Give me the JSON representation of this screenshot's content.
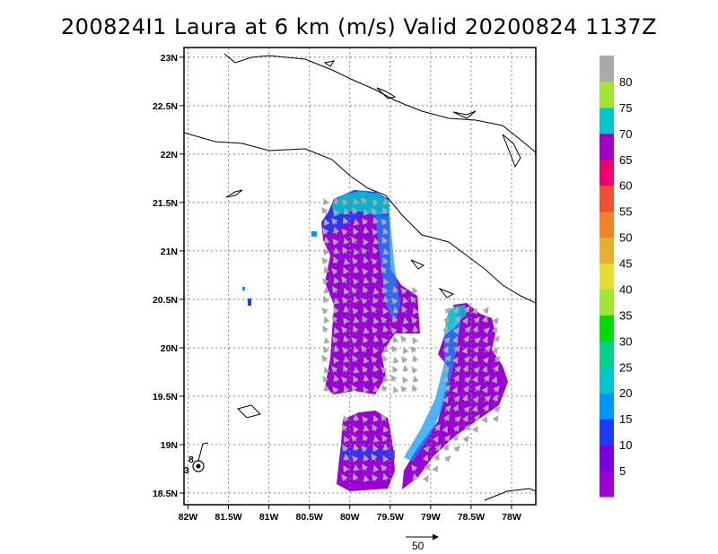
{
  "title": "200824I1 Laura at 6 km (m/s) Valid 20200824 1137Z",
  "map": {
    "lon_ticks": [
      "82W",
      "81.5W",
      "81W",
      "80.5W",
      "80W",
      "79.5W",
      "79W",
      "78.5W",
      "78W"
    ],
    "lat_ticks": [
      "23N",
      "22.5N",
      "22N",
      "21.5N",
      "21N",
      "20.5N",
      "20N",
      "19.5N",
      "19N",
      "18.5N"
    ],
    "lon_values": [
      -82,
      -81.5,
      -81,
      -80.5,
      -80,
      -79.5,
      -79,
      -78.5,
      -78
    ],
    "lat_values": [
      23,
      22.5,
      22,
      21.5,
      21,
      20.5,
      20,
      19.5,
      19,
      18.5
    ],
    "lon_range": [
      -82.05,
      -77.7
    ],
    "lat_range": [
      18.38,
      23.1
    ],
    "grid": true,
    "storm_marker": {
      "lon": -81.85,
      "lat": 18.75,
      "labels": [
        "8",
        "3"
      ]
    }
  },
  "colorbar": {
    "labels": [
      "5",
      "10",
      "15",
      "20",
      "25",
      "30",
      "35",
      "40",
      "45",
      "50",
      "55",
      "60",
      "65",
      "70",
      "75",
      "80"
    ],
    "colors": [
      "#9b00d6",
      "#7a00e0",
      "#1e3cff",
      "#0096ff",
      "#00c8c8",
      "#00d28c",
      "#00dc00",
      "#a0e632",
      "#e6dc32",
      "#e6af2d",
      "#f08228",
      "#f05032",
      "#f0006e",
      "#a000c8",
      "#00c8c8",
      "#a0e632",
      "#aaaaaa"
    ]
  },
  "reference_vector": {
    "label": "50"
  }
}
